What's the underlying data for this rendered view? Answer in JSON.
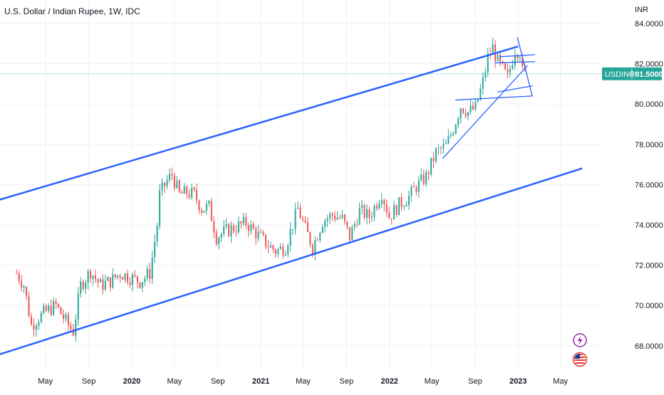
{
  "title": "U.S. Dollar / Indian Rupee, 1W, IDC",
  "currency_unit": "INR",
  "price_tag": {
    "symbol": "USDINR",
    "value": "81.5000",
    "color": "#26a69a"
  },
  "colors": {
    "up": "#26a69a",
    "down": "#ef5350",
    "trendline": "#2962ff",
    "grid": "#eef1f6",
    "current_line": "#26a69a"
  },
  "badges": {
    "top_icon": "lightning-icon",
    "bottom_icon": "us-flag-icon"
  },
  "chart_data": {
    "type": "candlestick",
    "y_axis": {
      "ylim": [
        66.8,
        84.5
      ],
      "ticks": [
        "84.0000",
        "82.0000",
        "80.0000",
        "78.0000",
        "76.0000",
        "74.0000",
        "72.0000",
        "70.0000",
        "68.0000"
      ]
    },
    "x_axis": {
      "ticks": [
        {
          "label": "May",
          "date": "2019-05-01",
          "bold": false
        },
        {
          "label": "Sep",
          "date": "2019-09-01",
          "bold": false
        },
        {
          "label": "2020",
          "date": "2020-01-01",
          "bold": true
        },
        {
          "label": "May",
          "date": "2020-05-01",
          "bold": false
        },
        {
          "label": "Sep",
          "date": "2020-09-01",
          "bold": false
        },
        {
          "label": "2021",
          "date": "2021-01-01",
          "bold": true
        },
        {
          "label": "May",
          "date": "2021-05-01",
          "bold": false
        },
        {
          "label": "Sep",
          "date": "2021-09-01",
          "bold": false
        },
        {
          "label": "2022",
          "date": "2022-01-01",
          "bold": true
        },
        {
          "label": "May",
          "date": "2022-05-01",
          "bold": false
        },
        {
          "label": "Sep",
          "date": "2022-09-01",
          "bold": false
        },
        {
          "label": "2023",
          "date": "2023-01-01",
          "bold": true
        },
        {
          "label": "May",
          "date": "2023-05-01",
          "bold": false
        }
      ]
    },
    "series": [
      {
        "close_anchors": [
          [
            "2019-02-08",
            71.6
          ],
          [
            "2019-03-01",
            71.0
          ],
          [
            "2019-03-22",
            69.0
          ],
          [
            "2019-04-12",
            69.4
          ],
          [
            "2019-05-03",
            69.7
          ],
          [
            "2019-05-31",
            70.0
          ],
          [
            "2019-06-28",
            69.2
          ],
          [
            "2019-07-19",
            68.7
          ],
          [
            "2019-08-09",
            71.0
          ],
          [
            "2019-09-06",
            71.7
          ],
          [
            "2019-10-04",
            71.0
          ],
          [
            "2019-11-01",
            71.2
          ],
          [
            "2019-11-29",
            71.6
          ],
          [
            "2019-12-27",
            71.4
          ],
          [
            "2020-01-24",
            71.2
          ],
          [
            "2020-02-21",
            71.6
          ],
          [
            "2020-03-13",
            74.0
          ],
          [
            "2020-03-20",
            75.5
          ],
          [
            "2020-04-10",
            76.2
          ],
          [
            "2020-04-24",
            76.5
          ],
          [
            "2020-05-15",
            75.5
          ],
          [
            "2020-06-05",
            75.6
          ],
          [
            "2020-06-26",
            75.5
          ],
          [
            "2020-07-17",
            74.8
          ],
          [
            "2020-08-07",
            74.9
          ],
          [
            "2020-08-28",
            73.4
          ],
          [
            "2020-09-25",
            73.7
          ],
          [
            "2020-10-23",
            73.9
          ],
          [
            "2020-11-20",
            74.1
          ],
          [
            "2020-12-18",
            73.6
          ],
          [
            "2021-01-15",
            73.1
          ],
          [
            "2021-02-12",
            72.7
          ],
          [
            "2021-03-12",
            72.9
          ],
          [
            "2021-04-16",
            74.8
          ],
          [
            "2021-05-07",
            73.8
          ],
          [
            "2021-05-28",
            72.9
          ],
          [
            "2021-06-25",
            74.2
          ],
          [
            "2021-07-23",
            74.5
          ],
          [
            "2021-08-20",
            74.3
          ],
          [
            "2021-09-10",
            73.4
          ],
          [
            "2021-10-08",
            74.7
          ],
          [
            "2021-11-05",
            74.4
          ],
          [
            "2021-12-10",
            75.6
          ],
          [
            "2021-12-31",
            74.4
          ],
          [
            "2022-01-28",
            75.0
          ],
          [
            "2022-02-25",
            75.4
          ],
          [
            "2022-03-18",
            75.9
          ],
          [
            "2022-04-15",
            76.4
          ],
          [
            "2022-05-13",
            77.6
          ],
          [
            "2022-06-10",
            77.9
          ],
          [
            "2022-07-01",
            78.8
          ],
          [
            "2022-07-22",
            79.9
          ],
          [
            "2022-08-12",
            79.6
          ],
          [
            "2022-09-02",
            79.8
          ],
          [
            "2022-09-23",
            81.1
          ],
          [
            "2022-10-07",
            82.3
          ],
          [
            "2022-10-21",
            82.8
          ],
          [
            "2022-11-04",
            82.1
          ],
          [
            "2022-11-18",
            81.7
          ],
          [
            "2022-12-02",
            81.3
          ],
          [
            "2022-12-23",
            82.7
          ],
          [
            "2023-01-06",
            82.6
          ],
          [
            "2023-01-13",
            81.6
          ],
          [
            "2023-01-20",
            81.5
          ]
        ]
      }
    ],
    "trendlines": [
      {
        "name": "channel-top",
        "points": [
          [
            "2018-07-01",
            74.35
          ],
          [
            "2022-12-30",
            82.85
          ]
        ]
      },
      {
        "name": "channel-bottom",
        "points": [
          [
            "2018-07-01",
            66.6
          ],
          [
            "2023-06-30",
            76.8
          ]
        ]
      },
      {
        "name": "rising-support",
        "points": [
          [
            "2022-06-01",
            77.3
          ],
          [
            "2023-01-27",
            81.9
          ]
        ]
      },
      {
        "name": "falling-wedge-top",
        "points": [
          [
            "2022-12-30",
            83.3
          ],
          [
            "2023-02-10",
            80.4
          ]
        ]
      },
      {
        "name": "wedge-bottom",
        "points": [
          [
            "2022-11-04",
            80.6
          ],
          [
            "2023-02-10",
            80.9
          ]
        ]
      },
      {
        "name": "range-low",
        "points": [
          [
            "2022-07-08",
            80.2
          ],
          [
            "2023-02-10",
            80.4
          ]
        ]
      },
      {
        "name": "range-high",
        "points": [
          [
            "2022-10-28",
            82.05
          ],
          [
            "2023-02-17",
            82.1
          ]
        ]
      },
      {
        "name": "range-top",
        "points": [
          [
            "2022-11-11",
            82.35
          ],
          [
            "2023-02-17",
            82.45
          ]
        ]
      }
    ]
  }
}
